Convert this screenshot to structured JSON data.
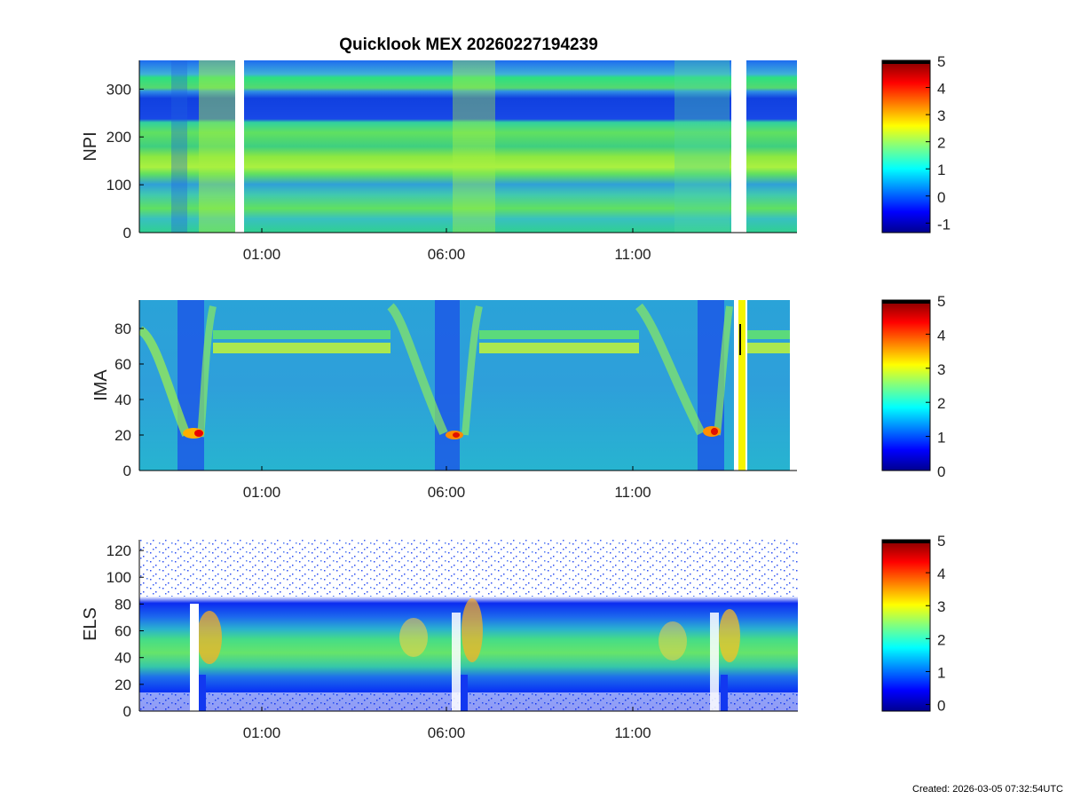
{
  "title": "Quicklook MEX 20260227194239",
  "footer": "Created: 2026-03-05 07:32:54UTC",
  "chart_data": [
    {
      "type": "heatmap",
      "panel": "NPI",
      "ylabel": "NPI",
      "ylim": [
        0,
        360
      ],
      "yticks": [
        0,
        100,
        200,
        300
      ],
      "xtick_labels": [
        "01:00",
        "06:00",
        "11:00"
      ],
      "colorbar": {
        "min": -1.35,
        "max": 5,
        "ticks": [
          -1,
          0,
          1,
          2,
          3,
          4,
          5
        ]
      },
      "data_gaps": [
        "between ~00:35 and ~00:48",
        "between ~13:30 and ~13:55"
      ]
    },
    {
      "type": "heatmap",
      "panel": "IMA",
      "ylabel": "IMA",
      "ylim": [
        0,
        96
      ],
      "yticks": [
        0,
        20,
        40,
        60,
        80
      ],
      "xtick_labels": [
        "01:00",
        "06:00",
        "11:00"
      ],
      "colorbar": {
        "min": 0,
        "max": 5,
        "ticks": [
          0,
          1,
          2,
          3,
          4,
          5
        ]
      }
    },
    {
      "type": "heatmap",
      "panel": "ELS",
      "ylabel": "ELS",
      "ylim": [
        0,
        128
      ],
      "yticks": [
        0,
        20,
        40,
        60,
        80,
        100,
        120
      ],
      "xtick_labels": [
        "01:00",
        "06:00",
        "11:00"
      ],
      "colorbar": {
        "min": -0.2,
        "max": 5,
        "ticks": [
          0,
          1,
          2,
          3,
          4,
          5
        ]
      }
    }
  ],
  "colors": {
    "colormap_jet": [
      "#00008f",
      "#0000ff",
      "#0080ff",
      "#00ffff",
      "#80ff80",
      "#ffff00",
      "#ff8000",
      "#ff0000",
      "#800000"
    ],
    "axis": "#000000",
    "text": "#222222"
  }
}
